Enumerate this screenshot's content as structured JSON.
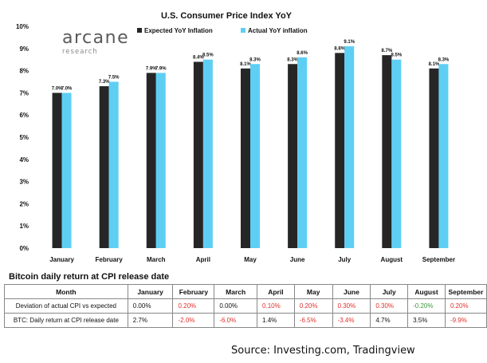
{
  "chart_data": {
    "type": "bar",
    "title": "U.S. Consumer Price Index YoY",
    "categories": [
      "January",
      "February",
      "March",
      "April",
      "May",
      "June",
      "July",
      "August",
      "September"
    ],
    "series": [
      {
        "name": "Expected YoY Inflation",
        "color": "#262626",
        "values": [
          7.0,
          7.3,
          7.9,
          8.4,
          8.1,
          8.3,
          8.8,
          8.7,
          8.1
        ],
        "labels": [
          "7.0%",
          "7.3%",
          "7.9%",
          "8.4%",
          "8.1%",
          "8.3%",
          "8.8%",
          "8.7%",
          "8.1%"
        ]
      },
      {
        "name": "Actual YoY inflation",
        "color": "#5ecff3",
        "values": [
          7.0,
          7.5,
          7.9,
          8.5,
          8.3,
          8.6,
          9.1,
          8.5,
          8.3
        ],
        "labels": [
          "7.0%",
          "7.5%",
          "7.9%",
          "8.5%",
          "8.3%",
          "8.6%",
          "9.1%",
          "8.5%",
          "8.3%"
        ]
      }
    ],
    "ylim": [
      0,
      10
    ],
    "yticks": [
      "0%",
      "1%",
      "2%",
      "3%",
      "4%",
      "5%",
      "6%",
      "7%",
      "8%",
      "9%",
      "10%"
    ],
    "grid": false,
    "legend": "top"
  },
  "logo": {
    "main": "arcane",
    "sub": "research"
  },
  "table": {
    "title": "Bitcoin daily return at CPI release date",
    "header": {
      "first": "Month",
      "months": [
        "January",
        "February",
        "March",
        "April",
        "May",
        "June",
        "July",
        "August",
        "September"
      ]
    },
    "rows": [
      {
        "label": "Deviation of actual CPI vs expected",
        "values": [
          "0.00%",
          "0.20%",
          "0.00%",
          "0.10%",
          "0.20%",
          "0.30%",
          "0.30%",
          "-0.20%",
          "0.20%"
        ],
        "tones": [
          "plain",
          "neg",
          "plain",
          "neg",
          "neg",
          "neg",
          "neg",
          "pos",
          "neg"
        ]
      },
      {
        "label": "BTC: Daily return at CPI release date",
        "values": [
          "2.7%",
          "-2.0%",
          "-6.0%",
          "1.4%",
          "-6.5%",
          "-3.4%",
          "4.7%",
          "3.5%",
          "-9.9%"
        ],
        "tones": [
          "plain",
          "neg",
          "neg",
          "plain",
          "neg",
          "neg",
          "plain",
          "plain",
          "neg"
        ]
      }
    ]
  },
  "source": "Source: Investing.com, Tradingview"
}
